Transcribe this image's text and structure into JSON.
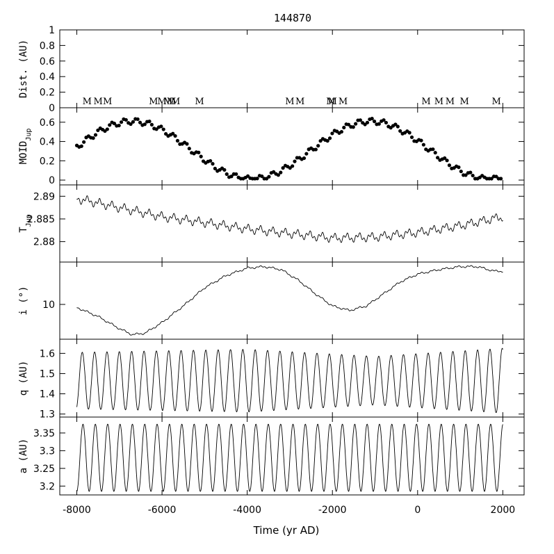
{
  "title": "144870",
  "chart_data": {
    "type": "line",
    "title": "144870",
    "xlabel": "Time (yr AD)",
    "xlim": [
      -8400,
      2500
    ],
    "xticks": [
      -8000,
      -6000,
      -4000,
      -2000,
      0,
      2000
    ],
    "xtick_labels": [
      "-8000",
      "-6000",
      "-4000",
      "-2000",
      "0",
      "2000"
    ],
    "panels": [
      {
        "id": "dist",
        "ylabel": "Dist. (AU)",
        "ylim": [
          0,
          1
        ],
        "yticks": [
          0,
          0.2,
          0.4,
          0.6,
          0.8,
          1
        ],
        "ytick_labels": [
          "0",
          "0.2",
          "0.4",
          "0.6",
          "0.8",
          "1"
        ],
        "marker_label": "M",
        "marker_times": [
          -7760,
          -7500,
          -7280,
          -6200,
          -6000,
          -5860,
          -5780,
          -5680,
          -5120,
          -3000,
          -2760,
          -2040,
          -2000,
          -1750,
          200,
          500,
          760,
          1100,
          1850
        ]
      },
      {
        "id": "moid",
        "ylabel": "MOID",
        "ylabel_sub": "Jup",
        "ylim": [
          -0.05,
          0.75
        ],
        "yticks": [
          0,
          0.2,
          0.4,
          0.6
        ],
        "ytick_labels": [
          "0",
          "0.2",
          "0.4",
          "0.6"
        ],
        "style": "points",
        "model": {
          "mean": 0.31,
          "amp": 0.3,
          "period": 5600,
          "phase_peak": -6700,
          "wiggle_amp": 0.03,
          "wiggle_period": 290,
          "step": 55
        }
      },
      {
        "id": "tjup",
        "ylabel": "T",
        "ylabel_sub": "Jup",
        "ylim": [
          2.8755,
          2.8925
        ],
        "yticks": [
          2.88,
          2.885,
          2.89
        ],
        "ytick_labels": [
          "2.88",
          "2.885",
          "2.89"
        ],
        "style": "line",
        "model": {
          "curve_x": [
            -8000,
            -7000,
            -6000,
            -5000,
            -4000,
            -3000,
            -2000,
            -1000,
            0,
            1000,
            2000
          ],
          "curve_y": [
            2.8895,
            2.8875,
            2.8855,
            2.8842,
            2.8828,
            2.8818,
            2.8808,
            2.881,
            2.882,
            2.8835,
            2.8855
          ],
          "noise_amp": 0.0011,
          "noise_period": 290
        }
      },
      {
        "id": "incl",
        "ylabel": "i (°)",
        "ylim": [
          8.85,
          11.4
        ],
        "yticks": [
          10
        ],
        "ytick_labels": [
          "10"
        ],
        "style": "line",
        "model": {
          "curve_x": [
            -8000,
            -7500,
            -7000,
            -6700,
            -6400,
            -6000,
            -5500,
            -5000,
            -4500,
            -4000,
            -3600,
            -3200,
            -2800,
            -2400,
            -2000,
            -1600,
            -1200,
            -800,
            -400,
            0,
            500,
            1000,
            1400,
            1800,
            2000
          ],
          "curve_y": [
            9.9,
            9.6,
            9.2,
            9.0,
            9.05,
            9.4,
            9.95,
            10.55,
            10.95,
            11.2,
            11.25,
            11.15,
            10.8,
            10.35,
            9.95,
            9.8,
            9.95,
            10.35,
            10.75,
            11.0,
            11.15,
            11.25,
            11.25,
            11.1,
            11.1
          ],
          "noise_amp": 0.04,
          "noise_period": 290
        }
      },
      {
        "id": "q",
        "ylabel": "q (AU)",
        "ylim": [
          1.285,
          1.67
        ],
        "yticks": [
          1.3,
          1.4,
          1.5,
          1.6
        ],
        "ytick_labels": [
          "1.3",
          "1.4",
          "1.5",
          "1.6"
        ],
        "style": "line",
        "model": {
          "center": 1.465,
          "amp_x": [
            -8000,
            -4000,
            -1000,
            2000
          ],
          "amp_y": [
            0.14,
            0.155,
            0.12,
            0.16
          ],
          "period": 290,
          "phase_start": -1.2
        }
      },
      {
        "id": "a",
        "ylabel": "a (AU)",
        "ylim": [
          3.175,
          3.395
        ],
        "yticks": [
          3.2,
          3.25,
          3.3,
          3.35
        ],
        "ytick_labels": [
          "3.2",
          "3.25",
          "3.3",
          "3.35"
        ],
        "style": "line",
        "model": {
          "center": 3.28,
          "amp": 0.095,
          "period": 290,
          "phase_start": -1.57
        }
      }
    ]
  }
}
